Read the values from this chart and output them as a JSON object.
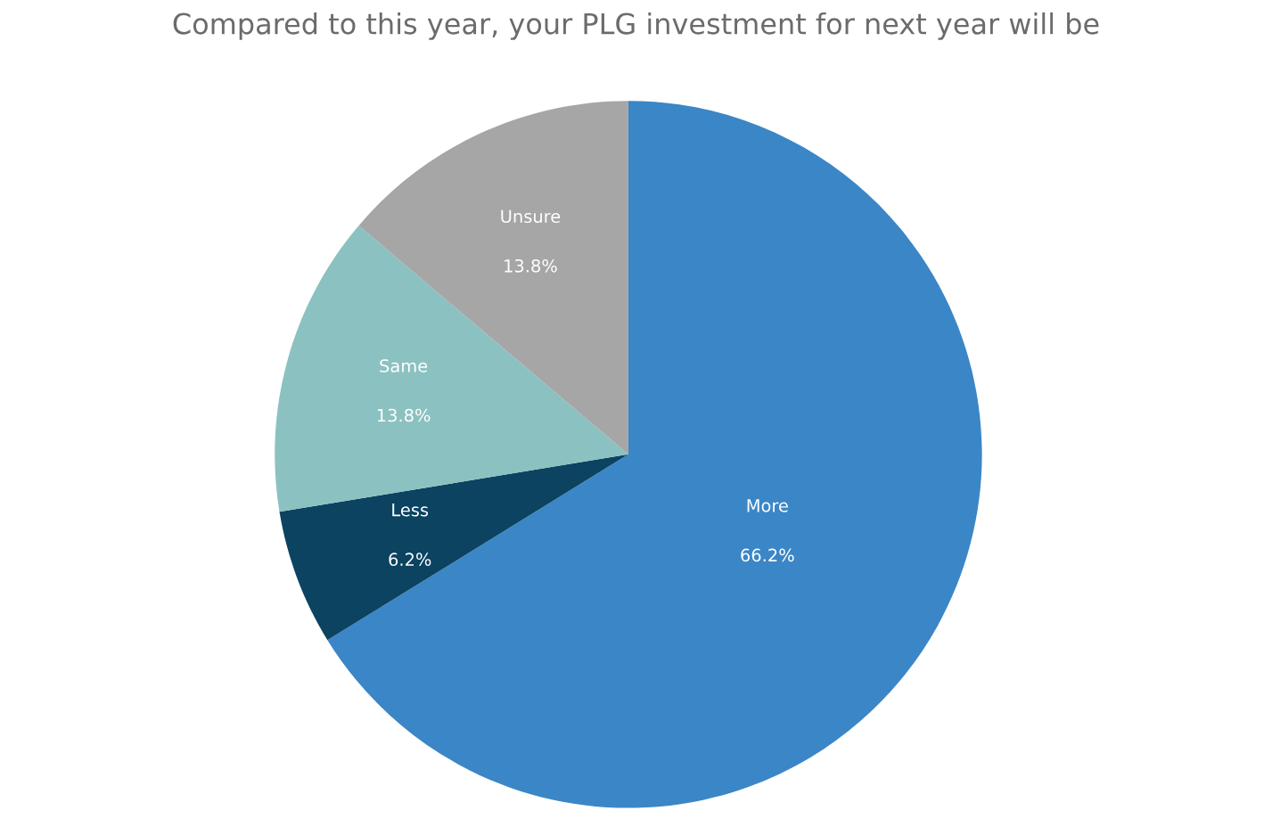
{
  "chart_data": {
    "type": "pie",
    "title": "Compared to this year, your PLG investment for next year will be",
    "categories": [
      "More",
      "Less",
      "Same",
      "Unsure"
    ],
    "values": [
      66.2,
      6.2,
      13.8,
      13.8
    ],
    "value_labels": [
      "66.2%",
      "6.2%",
      "13.8%",
      "13.8%"
    ],
    "colors": [
      "#3b86c6",
      "#0b4361",
      "#8cc1c1",
      "#a6a6a6"
    ],
    "legend": false
  }
}
